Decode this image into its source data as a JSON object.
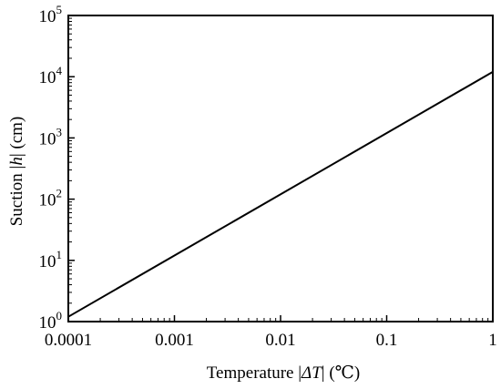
{
  "chart_data": {
    "type": "line",
    "title": "",
    "xlabel_prefix": "Temperature |",
    "xlabel_symbol": "ΔT",
    "xlabel_suffix": "| (℃)",
    "ylabel_prefix": "Suction |",
    "ylabel_symbol": "h",
    "ylabel_suffix": "| (cm)",
    "xscale": "log",
    "yscale": "log",
    "xlim": [
      0.0001,
      1
    ],
    "ylim": [
      1,
      100000
    ],
    "x_ticks": [
      0.0001,
      0.001,
      0.01,
      0.1,
      1
    ],
    "x_tick_labels": [
      "0.0001",
      "0.001",
      "0.01",
      "0.1",
      "1"
    ],
    "y_ticks": [
      1,
      10,
      100,
      1000,
      10000,
      100000
    ],
    "y_tick_base": "10",
    "y_tick_exponents": [
      "0",
      "1",
      "2",
      "3",
      "4",
      "5"
    ],
    "grid": false,
    "legend": false,
    "series": [
      {
        "x": [
          0.0001,
          1
        ],
        "y": [
          1.2,
          12000
        ]
      }
    ],
    "line_color": "#000000"
  }
}
